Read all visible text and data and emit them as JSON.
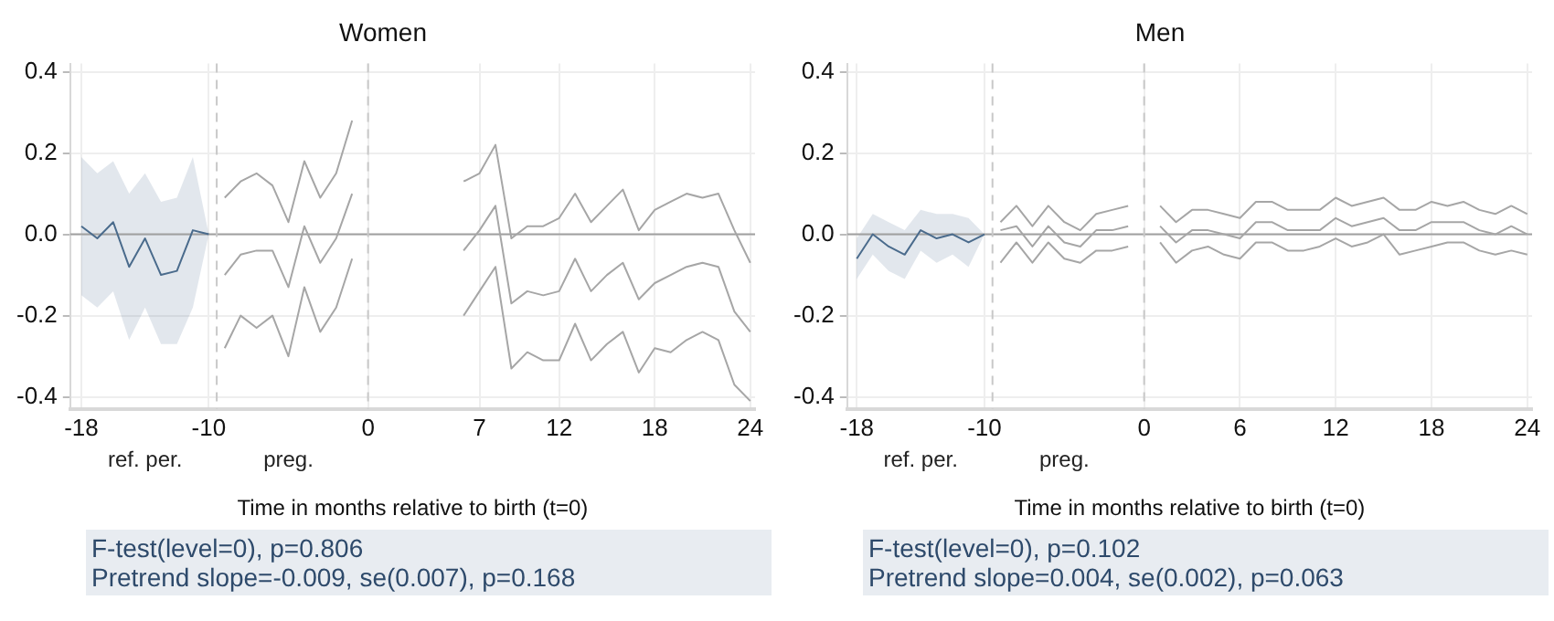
{
  "chart_data": [
    {
      "type": "line",
      "title": "Women",
      "xlabel": "Time in months relative to birth (t=0)",
      "xlim": [
        -18.7,
        24.3
      ],
      "xticks": [
        -18,
        -10,
        0,
        7,
        12,
        18,
        24
      ],
      "ylim": [
        -0.43,
        0.42
      ],
      "yticks": [
        {
          "value": -0.4,
          "label": "-0.4"
        },
        {
          "value": -0.2,
          "label": "-0.2"
        },
        {
          "value": 0,
          "label": "0.0"
        },
        {
          "value": 0.2,
          "label": "0.2"
        },
        {
          "value": 0.4,
          "label": "0.4"
        }
      ],
      "grid": true,
      "legend": false,
      "ref_lines": [
        {
          "axis": "y",
          "value": 0,
          "color": "#a0a0a0",
          "line_style": "solid"
        },
        {
          "axis": "x",
          "value": -9.5,
          "color": "#c8c8c8",
          "line_style": "dashed"
        },
        {
          "axis": "x",
          "value": 0,
          "color": "#c8c8c8",
          "line_style": "dashed"
        }
      ],
      "annotations": [
        "ref. per.",
        "preg.",
        "F-test(level=0),  p=0.806",
        "Pretrend slope=-0.009,  se(0.007), p=0.168"
      ],
      "series": [
        {
          "color": "#4a6b8c",
          "x": [
            -18,
            -17,
            -16,
            -15,
            -14,
            -13,
            -12,
            -11,
            -10
          ],
          "values": [
            0.02,
            -0.01,
            0.03,
            -0.08,
            -0.01,
            -0.1,
            -0.09,
            0.01,
            0.0
          ],
          "lower": [
            -0.15,
            -0.18,
            -0.14,
            -0.26,
            -0.18,
            -0.27,
            -0.27,
            -0.18,
            0.0
          ],
          "upper": [
            0.19,
            0.15,
            0.18,
            0.1,
            0.15,
            0.08,
            0.09,
            0.19,
            0.0
          ]
        },
        {
          "color": "#a6a6a6",
          "x": [
            -9,
            -8,
            -7,
            -6,
            -5,
            -4,
            -3,
            -2,
            -1
          ],
          "values": [
            0.09,
            0.13,
            0.15,
            0.12,
            0.03,
            0.18,
            0.09,
            0.15,
            0.28
          ]
        },
        {
          "color": "#a6a6a6",
          "x": [
            -9,
            -8,
            -7,
            -6,
            -5,
            -4,
            -3,
            -2,
            -1
          ],
          "values": [
            -0.1,
            -0.05,
            -0.04,
            -0.04,
            -0.13,
            0.02,
            -0.07,
            -0.01,
            0.1
          ]
        },
        {
          "color": "#a6a6a6",
          "x": [
            -9,
            -8,
            -7,
            -6,
            -5,
            -4,
            -3,
            -2,
            -1
          ],
          "values": [
            -0.28,
            -0.2,
            -0.23,
            -0.2,
            -0.3,
            -0.13,
            -0.24,
            -0.18,
            -0.06
          ]
        },
        {
          "color": "#a6a6a6",
          "x": [
            6,
            7,
            8,
            9,
            10,
            11,
            12,
            13,
            14,
            15,
            16,
            17,
            18,
            19,
            20,
            21,
            22,
            23,
            24
          ],
          "values": [
            0.13,
            0.15,
            0.22,
            -0.01,
            0.02,
            0.02,
            0.04,
            0.1,
            0.03,
            0.07,
            0.11,
            0.01,
            0.06,
            0.08,
            0.1,
            0.09,
            0.1,
            0.01,
            -0.07
          ]
        },
        {
          "color": "#a6a6a6",
          "x": [
            6,
            7,
            8,
            9,
            10,
            11,
            12,
            13,
            14,
            15,
            16,
            17,
            18,
            19,
            20,
            21,
            22,
            23,
            24
          ],
          "values": [
            -0.04,
            0.01,
            0.07,
            -0.17,
            -0.14,
            -0.15,
            -0.14,
            -0.06,
            -0.14,
            -0.1,
            -0.07,
            -0.16,
            -0.12,
            -0.1,
            -0.08,
            -0.07,
            -0.08,
            -0.19,
            -0.24
          ]
        },
        {
          "color": "#a6a6a6",
          "x": [
            6,
            7,
            8,
            9,
            10,
            11,
            12,
            13,
            14,
            15,
            16,
            17,
            18,
            19,
            20,
            21,
            22,
            23,
            24
          ],
          "values": [
            -0.2,
            -0.14,
            -0.08,
            -0.33,
            -0.29,
            -0.31,
            -0.31,
            -0.22,
            -0.31,
            -0.27,
            -0.24,
            -0.34,
            -0.28,
            -0.29,
            -0.26,
            -0.24,
            -0.26,
            -0.37,
            -0.41
          ]
        }
      ]
    },
    {
      "type": "line",
      "title": "Men",
      "xlabel": "Time in months relative to birth (t=0)",
      "xlim": [
        -18.6,
        24.3
      ],
      "xticks": [
        -18,
        -10,
        0,
        6,
        12,
        18,
        24
      ],
      "ylim": [
        -0.43,
        0.42
      ],
      "yticks": [
        {
          "value": -0.4,
          "label": "-0.4"
        },
        {
          "value": -0.2,
          "label": "-0.2"
        },
        {
          "value": 0,
          "label": "0.0"
        },
        {
          "value": 0.2,
          "label": "0.2"
        },
        {
          "value": 0.4,
          "label": "0.4"
        }
      ],
      "grid": true,
      "legend": false,
      "ref_lines": [
        {
          "axis": "y",
          "value": 0,
          "color": "#a0a0a0",
          "line_style": "solid"
        },
        {
          "axis": "x",
          "value": -9.5,
          "color": "#c8c8c8",
          "line_style": "dashed"
        },
        {
          "axis": "x",
          "value": 0,
          "color": "#c8c8c8",
          "line_style": "dashed"
        }
      ],
      "annotations": [
        "ref. per.",
        "preg.",
        "F-test(level=0),  p=0.102",
        "Pretrend slope=0.004,  se(0.002), p=0.063"
      ],
      "series": [
        {
          "color": "#4a6b8c",
          "x": [
            -18,
            -17,
            -16,
            -15,
            -14,
            -13,
            -12,
            -11,
            -10
          ],
          "values": [
            -0.06,
            0.0,
            -0.03,
            -0.05,
            0.01,
            -0.01,
            0.0,
            -0.02,
            0.0
          ],
          "lower": [
            -0.11,
            -0.05,
            -0.09,
            -0.11,
            -0.04,
            -0.07,
            -0.05,
            -0.08,
            0.0
          ],
          "upper": [
            -0.01,
            0.05,
            0.03,
            0.01,
            0.06,
            0.05,
            0.05,
            0.04,
            0.0
          ]
        },
        {
          "color": "#a6a6a6",
          "x": [
            -9,
            -8,
            -7,
            -6,
            -5,
            -4,
            -3,
            -2,
            -1
          ],
          "values": [
            0.03,
            0.07,
            0.02,
            0.07,
            0.03,
            0.01,
            0.05,
            0.06,
            0.07
          ]
        },
        {
          "color": "#a6a6a6",
          "x": [
            -9,
            -8,
            -7,
            -6,
            -5,
            -4,
            -3,
            -2,
            -1
          ],
          "values": [
            0.01,
            0.02,
            -0.03,
            0.02,
            -0.02,
            -0.03,
            0.01,
            0.01,
            0.02
          ]
        },
        {
          "color": "#a6a6a6",
          "x": [
            -9,
            -8,
            -7,
            -6,
            -5,
            -4,
            -3,
            -2,
            -1
          ],
          "values": [
            -0.07,
            -0.02,
            -0.07,
            -0.02,
            -0.06,
            -0.07,
            -0.04,
            -0.04,
            -0.03
          ]
        },
        {
          "color": "#a6a6a6",
          "x": [
            1,
            2,
            3,
            4,
            5,
            6,
            7,
            8,
            9,
            10,
            11,
            12,
            13,
            14,
            15,
            16,
            17,
            18,
            19,
            20,
            21,
            22,
            23,
            24
          ],
          "values": [
            0.07,
            0.03,
            0.06,
            0.06,
            0.05,
            0.04,
            0.08,
            0.08,
            0.06,
            0.06,
            0.06,
            0.09,
            0.07,
            0.08,
            0.09,
            0.06,
            0.06,
            0.08,
            0.07,
            0.08,
            0.06,
            0.05,
            0.07,
            0.05
          ]
        },
        {
          "color": "#a6a6a6",
          "x": [
            1,
            2,
            3,
            4,
            5,
            6,
            7,
            8,
            9,
            10,
            11,
            12,
            13,
            14,
            15,
            16,
            17,
            18,
            19,
            20,
            21,
            22,
            23,
            24
          ],
          "values": [
            0.02,
            -0.02,
            0.01,
            0.01,
            0.0,
            -0.01,
            0.03,
            0.03,
            0.01,
            0.01,
            0.01,
            0.04,
            0.02,
            0.03,
            0.04,
            0.01,
            0.01,
            0.03,
            0.03,
            0.03,
            0.01,
            0.0,
            0.02,
            0.0
          ]
        },
        {
          "color": "#a6a6a6",
          "x": [
            1,
            2,
            3,
            4,
            5,
            6,
            7,
            8,
            9,
            10,
            11,
            12,
            13,
            14,
            15,
            16,
            17,
            18,
            19,
            20,
            21,
            22,
            23,
            24
          ],
          "values": [
            -0.02,
            -0.07,
            -0.04,
            -0.03,
            -0.05,
            -0.06,
            -0.02,
            -0.02,
            -0.04,
            -0.04,
            -0.03,
            -0.01,
            -0.03,
            -0.02,
            0.0,
            -0.05,
            -0.04,
            -0.03,
            -0.02,
            -0.02,
            -0.04,
            -0.05,
            -0.04,
            -0.05
          ]
        }
      ]
    }
  ]
}
